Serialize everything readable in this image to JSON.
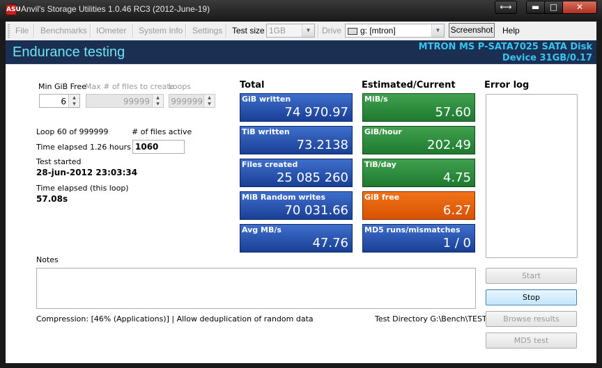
{
  "window": {
    "title": "Anvil's Storage Utilities 1.0.46 RC3 (2012-June-19)",
    "icon_text": "ASU",
    "controls": {
      "arrows": "⟷",
      "minimize": "▬",
      "maximize": "□",
      "close": "✕"
    }
  },
  "toolbar": {
    "file": "File",
    "benchmarks": "Benchmarks",
    "iometer": "IOmeter",
    "system_info": "System Info",
    "settings": "Settings",
    "test_size_label": "Test size",
    "test_size_value": "1GB",
    "drive_label": "Drive",
    "drive_value": "g: [mtron]",
    "screenshot": "Screenshot",
    "help": "Help"
  },
  "header": {
    "title": "Endurance testing",
    "device_line1": "MTRON MS P-SATA7025 SATA Disk",
    "device_line2": "Device 31GB/0.17"
  },
  "params": {
    "min_gib_free_label": "Min GiB Free",
    "min_gib_free_value": "6",
    "max_files_label": "Max # of files to create",
    "max_files_value": "99999",
    "loops_label": "Loops",
    "loops_value": "999999"
  },
  "status": {
    "loop": "Loop 60 of 999999",
    "files_active_label": "# of files active",
    "files_active_value": "1060",
    "time_elapsed": "Time elapsed 1.26 hours",
    "test_started_label": "Test started",
    "test_started_value": "28-jun-2012 23:03:34",
    "loop_elapsed_label": "Time elapsed (this loop)",
    "loop_elapsed_value": "57.08s"
  },
  "total": {
    "heading": "Total",
    "tiles": [
      {
        "label": "GiB written",
        "value": "74 970.97"
      },
      {
        "label": "TiB written",
        "value": "73.2138"
      },
      {
        "label": "Files created",
        "value": "25 085 260"
      },
      {
        "label": "MiB Random writes",
        "value": "70 031.66"
      },
      {
        "label": "Avg MB/s",
        "value": "47.76"
      }
    ]
  },
  "estimated": {
    "heading": "Estimated/Current",
    "tiles": [
      {
        "label": "MiB/s",
        "value": "57.60",
        "color": "#2f8f3f"
      },
      {
        "label": "GiB/hour",
        "value": "202.49",
        "color": "#2f8f3f"
      },
      {
        "label": "TiB/day",
        "value": "4.75",
        "color": "#2f8f3f"
      },
      {
        "label": "GiB free",
        "value": "6.27",
        "color": "#e86410"
      },
      {
        "label": "MD5 runs/mismatches",
        "value": "1 / 0",
        "color": "#1f4aa0"
      }
    ]
  },
  "error_log": {
    "heading": "Error log"
  },
  "notes": {
    "label": "Notes"
  },
  "footer": {
    "compression": "Compression: [46% (Applications)] | Allow deduplication of random data",
    "test_directory": "Test Directory G:\\Bench\\TEST"
  },
  "buttons": {
    "start": "Start",
    "stop": "Stop",
    "browse": "Browse results",
    "md5": "MD5 test"
  }
}
